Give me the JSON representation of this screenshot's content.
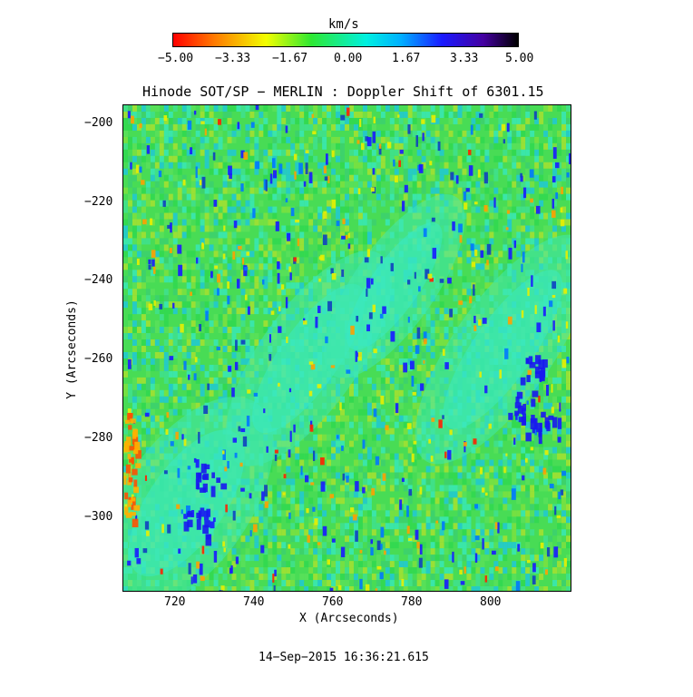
{
  "colorbar": {
    "unit": "km/s",
    "ticks": [
      "−5.00",
      "−3.33",
      "−1.67",
      "0.00",
      "1.67",
      "3.33",
      "5.00"
    ],
    "colors": [
      "#ff0000",
      "#ff8800",
      "#ffff00",
      "#00ff00",
      "#00ffff",
      "#0000ff",
      "#000000"
    ]
  },
  "plot": {
    "title": "Hinode SOT/SP − MERLIN : Doppler Shift of 6301.15",
    "xlabel": "X (Arcseconds)",
    "ylabel": "Y (Arcseconds)",
    "x_ticks": [
      "720",
      "740",
      "760",
      "780",
      "800"
    ],
    "y_ticks": [
      "−200",
      "−220",
      "−240",
      "−260",
      "−280",
      "−300"
    ],
    "x_range": [
      706,
      820
    ],
    "y_range": [
      -318,
      -196
    ]
  },
  "timestamp": "14−Sep−2015 16:36:21.615"
}
